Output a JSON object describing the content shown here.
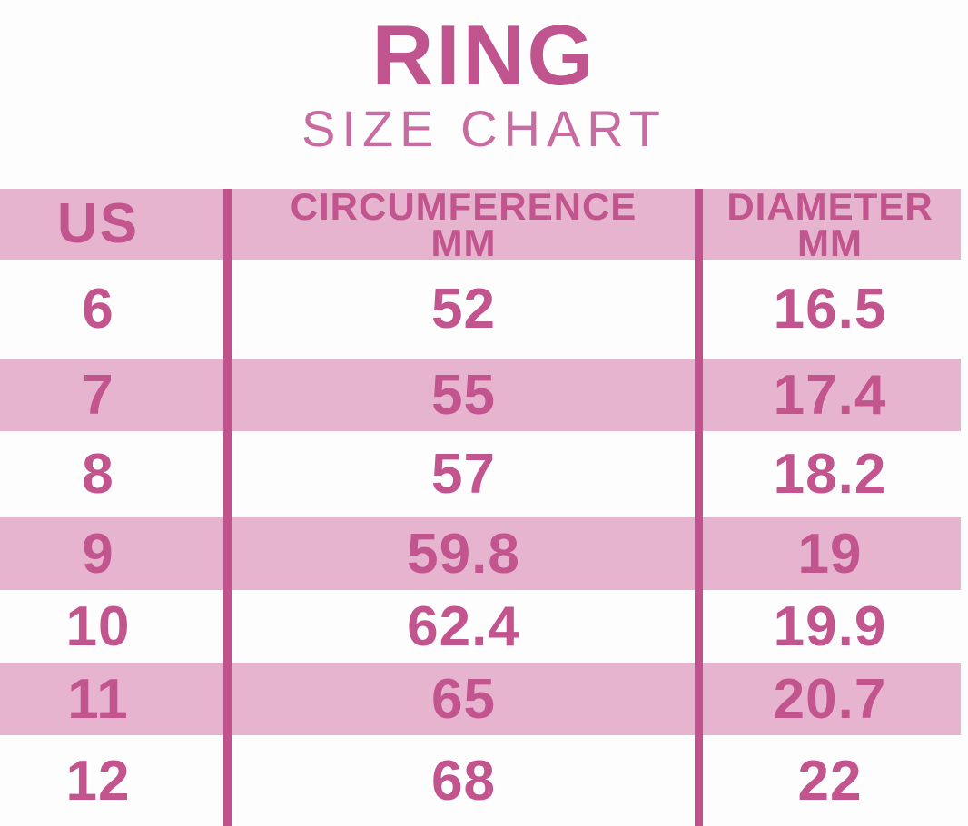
{
  "title": {
    "main": "RING",
    "subtitle": "SIZE CHART"
  },
  "header": {
    "us": "US",
    "circumference_line1": "CIRCUMFERENCE",
    "circumference_line2": "MM",
    "diameter_line1": "DIAMETER",
    "diameter_line2": "MM"
  },
  "chart_data": {
    "type": "table",
    "title": "RING SIZE CHART",
    "columns": [
      "US",
      "CIRCUMFERENCE MM",
      "DIAMETER MM"
    ],
    "rows": [
      {
        "us": "6",
        "circumference_mm": "52",
        "diameter_mm": "16.5"
      },
      {
        "us": "7",
        "circumference_mm": "55",
        "diameter_mm": "17.4"
      },
      {
        "us": "8",
        "circumference_mm": "57",
        "diameter_mm": "18.2"
      },
      {
        "us": "9",
        "circumference_mm": "59.8",
        "diameter_mm": "19"
      },
      {
        "us": "10",
        "circumference_mm": "62.4",
        "diameter_mm": "19.9"
      },
      {
        "us": "11",
        "circumference_mm": "65",
        "diameter_mm": "20.7"
      },
      {
        "us": "12",
        "circumference_mm": "68",
        "diameter_mm": "22"
      }
    ],
    "layout": {
      "striped_rows": [
        "7",
        "9",
        "11"
      ],
      "grid": "vertical-dividers-only",
      "legend": "none"
    }
  },
  "colors": {
    "stripe_pink": "#e7b4d0",
    "text_pink": "#c2548e",
    "title_pink": "#c0548e",
    "subtitle_pink": "#c76ba0",
    "divider_pink": "#c0528c",
    "background": "#fdfdfe"
  }
}
